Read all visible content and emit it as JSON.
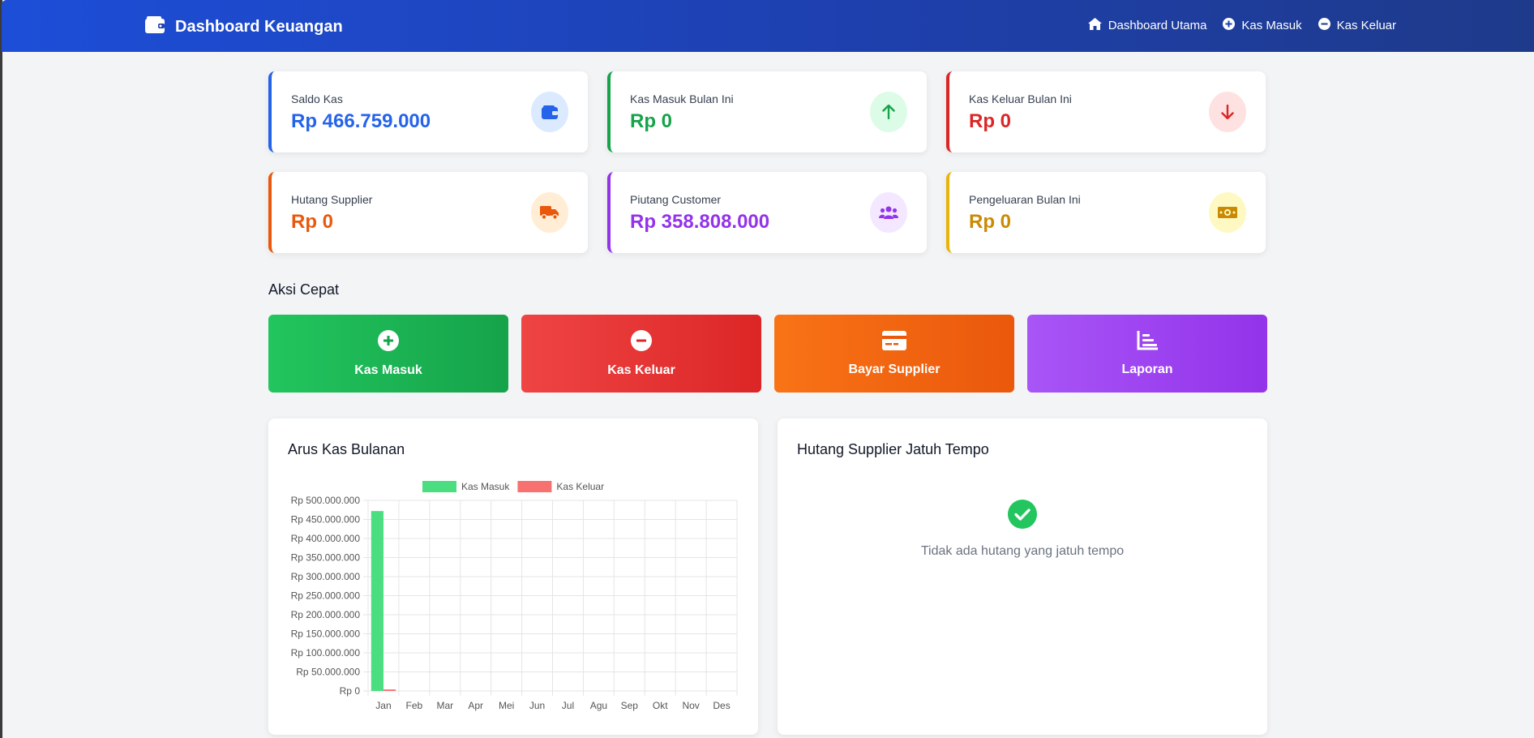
{
  "navbar": {
    "brand": "Dashboard Keuangan",
    "links": [
      {
        "label": "Dashboard Utama",
        "icon": "home-icon"
      },
      {
        "label": "Kas Masuk",
        "icon": "plus-circle-icon"
      },
      {
        "label": "Kas Keluar",
        "icon": "minus-circle-icon"
      }
    ]
  },
  "stats": [
    {
      "label": "Saldo Kas",
      "value": "Rp 466.759.000",
      "color": "#2563eb",
      "icon": "wallet-icon"
    },
    {
      "label": "Kas Masuk Bulan Ini",
      "value": "Rp 0",
      "color": "#16a34a",
      "icon": "arrow-up-icon"
    },
    {
      "label": "Kas Keluar Bulan Ini",
      "value": "Rp 0",
      "color": "#dc2626",
      "icon": "arrow-down-icon"
    },
    {
      "label": "Hutang Supplier",
      "value": "Rp 0",
      "color": "#ea580c",
      "icon": "truck-icon"
    },
    {
      "label": "Piutang Customer",
      "value": "Rp 358.808.000",
      "color": "#9333ea",
      "icon": "users-icon"
    },
    {
      "label": "Pengeluaran Bulan Ini",
      "value": "Rp 0",
      "color": "#ca8a04",
      "icon": "money-icon"
    }
  ],
  "quick_actions": {
    "title": "Aksi Cepat",
    "items": [
      {
        "label": "Kas Masuk",
        "icon": "plus-circle-icon"
      },
      {
        "label": "Kas Keluar",
        "icon": "minus-circle-icon"
      },
      {
        "label": "Bayar Supplier",
        "icon": "credit-card-icon"
      },
      {
        "label": "Laporan",
        "icon": "chart-bar-icon"
      }
    ]
  },
  "cashflow_panel": {
    "title": "Arus Kas Bulanan"
  },
  "debt_panel": {
    "title": "Hutang Supplier Jatuh Tempo",
    "empty_text": "Tidak ada hutang yang jatuh tempo"
  },
  "chart_data": {
    "type": "bar",
    "categories": [
      "Jan",
      "Feb",
      "Mar",
      "Apr",
      "Mei",
      "Jun",
      "Jul",
      "Agu",
      "Sep",
      "Okt",
      "Nov",
      "Des"
    ],
    "series": [
      {
        "name": "Kas Masuk",
        "color": "#4ade80",
        "values": [
          472000000,
          0,
          0,
          0,
          0,
          0,
          0,
          0,
          0,
          0,
          0,
          0
        ]
      },
      {
        "name": "Kas Keluar",
        "color": "#f87171",
        "values": [
          4000000,
          0,
          0,
          0,
          0,
          0,
          0,
          0,
          0,
          0,
          0,
          0
        ]
      }
    ],
    "ylim": [
      0,
      500000000
    ],
    "yticks": [
      "Rp 0",
      "Rp 50.000.000",
      "Rp 100.000.000",
      "Rp 150.000.000",
      "Rp 200.000.000",
      "Rp 250.000.000",
      "Rp 300.000.000",
      "Rp 350.000.000",
      "Rp 400.000.000",
      "Rp 450.000.000",
      "Rp 500.000.000"
    ],
    "legend": "top",
    "grid": true
  }
}
